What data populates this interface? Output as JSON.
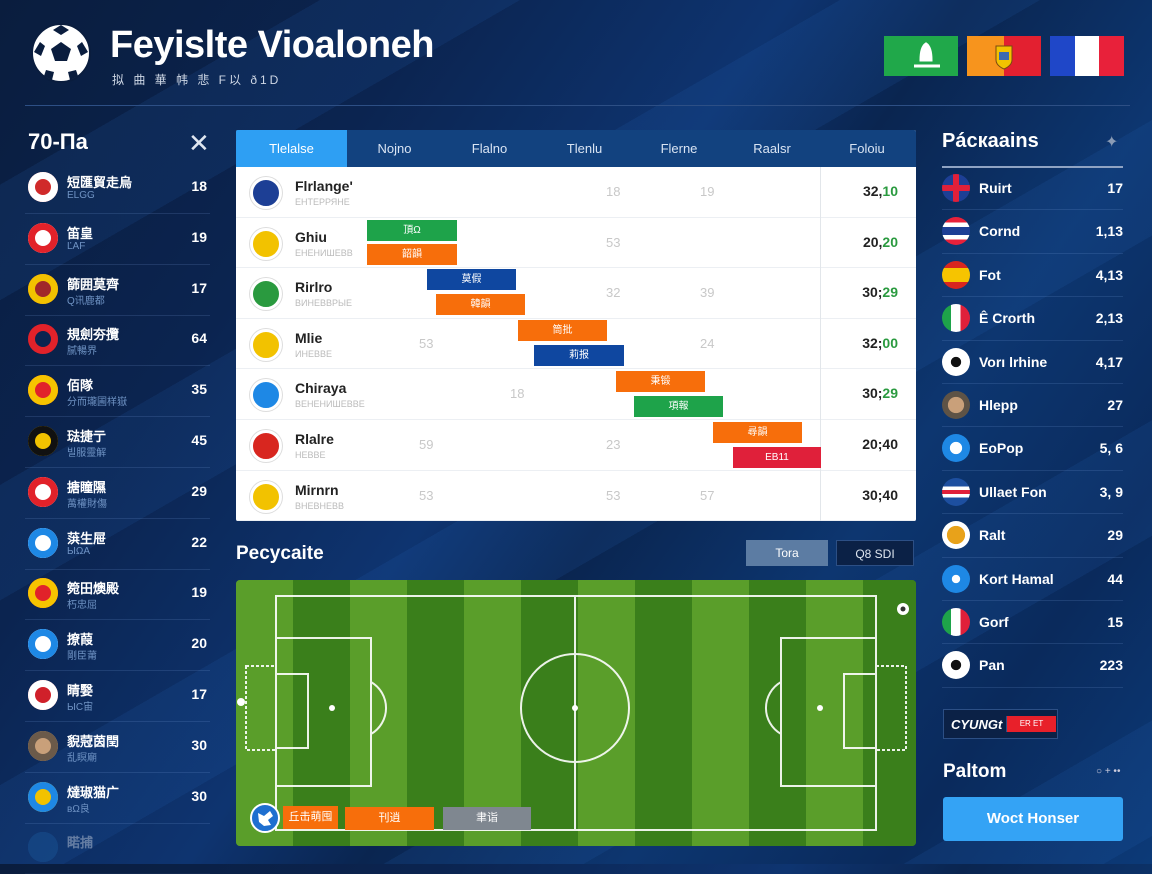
{
  "header": {
    "title": "Feyislte Vioaloneh",
    "subtitle": "拟 曲 華 帏 悲  F以 ð1D",
    "logo_icon": "soccer-ball-icon",
    "flags": [
      {
        "name": "green-flag",
        "colors": [
          "#20a84a"
        ]
      },
      {
        "name": "orange-red-flag",
        "colors": [
          "#f7941d",
          "#e32030"
        ]
      },
      {
        "name": "france-flag",
        "colors": [
          "#1f47c8",
          "#ffffff",
          "#e8213a"
        ]
      }
    ]
  },
  "left": {
    "title": "70-Πa",
    "close_icon": "close-icon",
    "items": [
      {
        "name": "短匯貿走烏",
        "sub": "ELGG",
        "value": "18",
        "color": "#ffffff",
        "accent": "#d02a2a"
      },
      {
        "name": "笛皇",
        "sub": "ĽAF",
        "value": "19",
        "color": "#e1222a",
        "accent": "#ffffff"
      },
      {
        "name": "篩囲莫齊",
        "sub": "Q讯鹿都",
        "value": "17",
        "color": "#f2c200",
        "accent": "#a0282a"
      },
      {
        "name": "規劍夯攬",
        "sub": "腻暢界",
        "value": "64",
        "color": "#e1222a",
        "accent": "#0b2450"
      },
      {
        "name": "佰隊",
        "sub": "分而瓏圃样嶽",
        "value": "35",
        "color": "#f6c400",
        "accent": "#e1222a"
      },
      {
        "name": "琺捷亍",
        "sub": "빌服靈解",
        "value": "45",
        "color": "#111111",
        "accent": "#f2c200"
      },
      {
        "name": "搪瞳隰",
        "sub": "萬權財傷",
        "value": "29",
        "color": "#e1222a",
        "accent": "#ffffff"
      },
      {
        "name": "葓生屉",
        "sub": "ЫΩA",
        "value": "22",
        "color": "#1e88e5",
        "accent": "#ffffff"
      },
      {
        "name": "箢田燠殿",
        "sub": "朽忠屈",
        "value": "19",
        "color": "#f6c400",
        "accent": "#e1222a"
      },
      {
        "name": "撩葭",
        "sub": "剛臣莆",
        "value": "20",
        "color": "#1e88e5",
        "accent": "#ffffff"
      },
      {
        "name": "睛嫛",
        "sub": "ЫС宙",
        "value": "17",
        "color": "#ffffff",
        "accent": "#d0202a"
      },
      {
        "name": "貎蒄茵閏",
        "sub": "乱瞑廟",
        "value": "30",
        "color": "#6b5a4a",
        "accent": "#c9a07a"
      },
      {
        "name": "燵琡猫广",
        "sub": "вΩ良",
        "value": "30",
        "color": "#1e88e5",
        "accent": "#f2c200"
      },
      {
        "name": "睰捕",
        "sub": "",
        "value": "",
        "color": "#1e5fa5",
        "accent": "#1e5fa5"
      }
    ]
  },
  "table": {
    "tabs": [
      "Tlelalse",
      "Nojno",
      "Flalno",
      "Tlenlu",
      "Flerne",
      "Raalsr",
      "Foloiu"
    ],
    "active_tab": 0,
    "rows": [
      {
        "name": "Flrlange'",
        "sub": "ЕНТЕРРЯНЕ",
        "icon_color": "#1d3f95",
        "score_a": "32,",
        "score_b": "10",
        "green": true,
        "faint": [
          "",
          "",
          "18",
          "19"
        ]
      },
      {
        "name": "Ghiu",
        "sub": "ЕНЕНИШЕВВ",
        "icon_color": "#f2c200",
        "score_a": "20,",
        "score_b": "20",
        "green": true,
        "faint": [
          "",
          "",
          "53",
          ""
        ]
      },
      {
        "name": "Rirlro",
        "sub": "ВИНЕВВРЫЕ",
        "icon_color": "#2a9a3f",
        "score_a": "30;",
        "score_b": "29",
        "green": true,
        "faint": [
          "",
          "",
          "32",
          "39"
        ]
      },
      {
        "name": "Mlie",
        "sub": "ИНЕВВЕ",
        "icon_color": "#f2c200",
        "score_a": "32;",
        "score_b": "00",
        "green": true,
        "faint": [
          "53",
          "",
          "",
          "24"
        ]
      },
      {
        "name": "Chiraya",
        "sub": "ВЕНЕНИШЕВВЕ",
        "icon_color": "#1e88e5",
        "score_a": "30;",
        "score_b": "29",
        "green": true,
        "faint": [
          "",
          "18",
          "",
          ""
        ]
      },
      {
        "name": "Rlalre",
        "sub": "НЕВВЕ",
        "icon_color": "#d8261f",
        "score_a": "20;40",
        "score_b": "",
        "green": false,
        "faint": [
          "59",
          "",
          "23",
          ""
        ]
      },
      {
        "name": "Mirnrn",
        "sub": "ВНЕВНЕВВ",
        "icon_color": "#f2c200",
        "score_a": "30;40",
        "score_b": "",
        "green": false,
        "faint": [
          "53",
          "",
          "53",
          "57"
        ]
      }
    ],
    "bars": [
      {
        "label": "頂Ω",
        "color": "#1ea34a"
      },
      {
        "label": "韶韻",
        "color": "#f76e0b"
      },
      {
        "label": "莫假",
        "color": "#0f47a0"
      },
      {
        "label": "韓韻",
        "color": "#f76e0b"
      },
      {
        "label": "筒批",
        "color": "#f76e0b"
      },
      {
        "label": "莉报",
        "color": "#0f47a0"
      },
      {
        "label": "秉锻",
        "color": "#f76e0b"
      },
      {
        "label": "項報",
        "color": "#1ea34a"
      },
      {
        "label": "尋韻",
        "color": "#f76e0b"
      },
      {
        "label": "ЕВ11",
        "color": "#e0203a"
      }
    ]
  },
  "pitch": {
    "title": "Pecycaite",
    "btn1": "Tora",
    "btn2": "Q8 SDI",
    "labels": [
      "丘击萌囤",
      "刊逍",
      "聿诣"
    ],
    "label_colors": [
      "#f76e0b",
      "#f76e0b",
      "#7f8790"
    ]
  },
  "right": {
    "title": "Pácкaains",
    "items": [
      {
        "name": "Ruirt",
        "value": "17",
        "icon": "uk-flag-icon"
      },
      {
        "name": "Cornd",
        "value": "1,13",
        "icon": "thailand-flag-icon"
      },
      {
        "name": "Fot",
        "value": "4,13",
        "icon": "spain-flag-icon"
      },
      {
        "name": "Ê Crorth",
        "value": "2,13",
        "icon": "italy-flag-icon"
      },
      {
        "name": "Vorı lrhine",
        "value": "4,17",
        "icon": "ball-icon"
      },
      {
        "name": "Hlepp",
        "value": "27",
        "icon": "avatar-icon"
      },
      {
        "name": "EoPop",
        "value": "5, 6",
        "icon": "blue-badge-icon"
      },
      {
        "name": "Ullaet Fon",
        "value": "3, 9",
        "icon": "england-flag-icon"
      },
      {
        "name": "Ralt",
        "value": "29",
        "icon": "crest-icon"
      },
      {
        "name": "Kort Hamal",
        "value": "44",
        "icon": "star-badge-icon"
      },
      {
        "name": "Gorf",
        "value": "15",
        "icon": "italy-flag-icon"
      },
      {
        "name": "Pan",
        "value": "223",
        "icon": "ball-icon"
      }
    ],
    "tag": "CYUNGt",
    "tag_badge": "ER ET",
    "section": "Paltom",
    "dots": "○ + ••",
    "button": "Woct Honser"
  }
}
